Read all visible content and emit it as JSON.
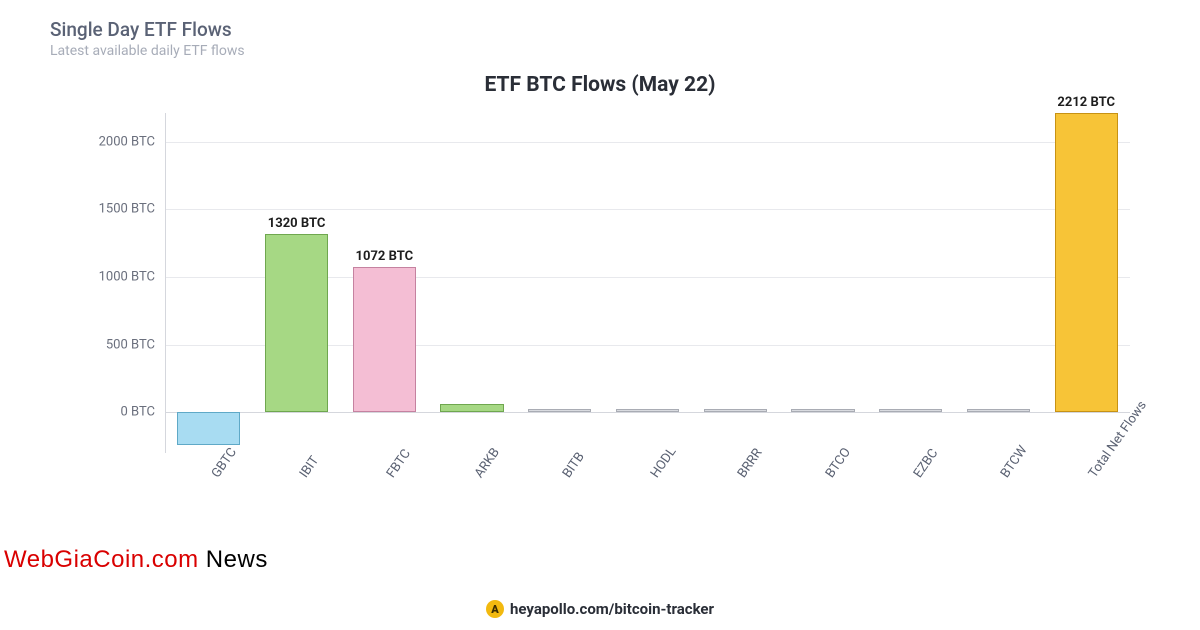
{
  "header": {
    "title": "Single Day ETF Flows",
    "subtitle": "Latest available daily ETF flows"
  },
  "chart": {
    "type": "bar",
    "title": "ETF BTC Flows (May 22)",
    "background_color": "#ffffff",
    "grid_color": "#e8e9ed",
    "axis_color": "#d5d7dd",
    "label_color": "#6a6f7d",
    "title_fontsize": 21,
    "label_fontsize": 13,
    "bar_width_pct": 72,
    "y": {
      "unit": "BTC",
      "min": -300,
      "max": 2212,
      "ticks": [
        0,
        500,
        1000,
        1500,
        2000
      ]
    },
    "categories": [
      "GBTC",
      "IBIT",
      "FBTC",
      "ARKB",
      "BITB",
      "HODL",
      "BRRR",
      "BTCO",
      "EZBC",
      "BTCW",
      "Total Net Flows"
    ],
    "values": [
      -240,
      1320,
      1072,
      60,
      0,
      0,
      0,
      0,
      0,
      0,
      2212
    ],
    "bar_colors": [
      "#a8dcf2",
      "#a6d884",
      "#f4bed4",
      "#a6d884",
      "#d9dbe0",
      "#d9dbe0",
      "#d9dbe0",
      "#d9dbe0",
      "#d9dbe0",
      "#d9dbe0",
      "#f7c437"
    ],
    "bar_border_colors": [
      "#5fa9c7",
      "#6fa74f",
      "#c582a0",
      "#6fa74f",
      "#a9acb4",
      "#a9acb4",
      "#a9acb4",
      "#a9acb4",
      "#a9acb4",
      "#a9acb4",
      "#c79214"
    ],
    "value_labels": [
      null,
      "1320 BTC",
      "1072 BTC",
      null,
      null,
      null,
      null,
      null,
      null,
      null,
      "2212 BTC"
    ],
    "xlabel_rotation_deg": -55
  },
  "footer": {
    "badge_glyph": "A",
    "text": "heyapollo.com/bitcoin-tracker",
    "badge_bg": "#f2b90f"
  },
  "watermark": {
    "text_red": "WebGiaCoin.com",
    "text_black": " News",
    "color_red": "#d90000",
    "color_black": "#000000"
  }
}
